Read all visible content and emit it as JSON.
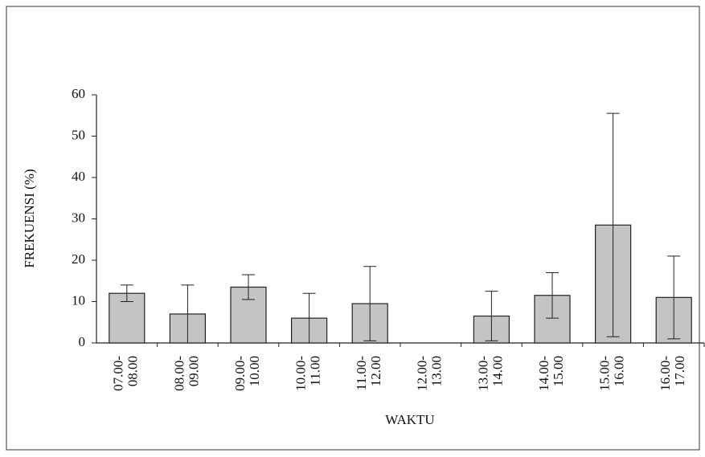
{
  "chart_data": {
    "type": "bar",
    "categories": [
      [
        "07.00-",
        "08.00"
      ],
      [
        "08.00-",
        "09.00"
      ],
      [
        "09.00-",
        "10.00"
      ],
      [
        "10.00-",
        "11.00"
      ],
      [
        "11.00-",
        "12.00"
      ],
      [
        "12.00-",
        "13.00"
      ],
      [
        "13.00-",
        "14.00"
      ],
      [
        "14.00-",
        "15.00"
      ],
      [
        "15.00-",
        "16.00"
      ],
      [
        "16.00-",
        "17.00"
      ]
    ],
    "values": [
      12,
      7,
      13.5,
      6,
      9.5,
      0,
      6.5,
      11.5,
      28.5,
      11
    ],
    "errors": [
      2,
      7,
      3,
      6,
      9,
      0,
      6,
      5.5,
      27,
      10
    ],
    "color": "#c4c4c4",
    "ylabel": "FREKUENSI (%)",
    "xlabel": "WAKTU",
    "ylim": [
      0,
      60
    ],
    "yticks": [
      0,
      10,
      20,
      30,
      40,
      50,
      60
    ],
    "grid": false
  }
}
